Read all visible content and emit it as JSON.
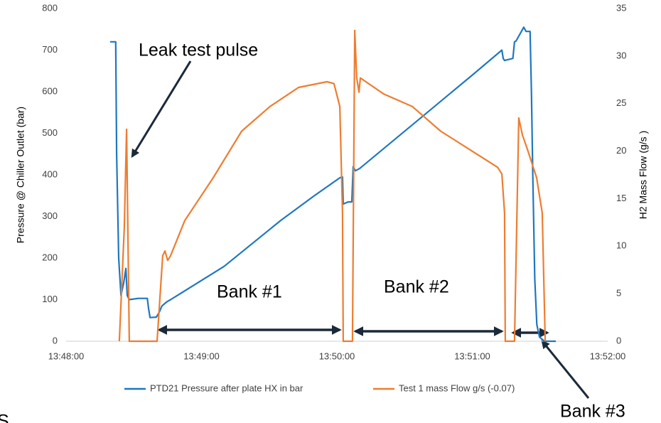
{
  "chart_data": {
    "type": "line",
    "y_label": "Pressure @ Chiller Outlet (bar)",
    "y2_label": "H2  Mass Flow (g/s )",
    "xlim": [
      49680,
      49920
    ],
    "xticks": [
      {
        "value": 49680,
        "label": "13:48:00"
      },
      {
        "value": 49740,
        "label": "13:49:00"
      },
      {
        "value": 49800,
        "label": "13:50:00"
      },
      {
        "value": 49860,
        "label": "13:51:00"
      },
      {
        "value": 49920,
        "label": "13:52:00"
      }
    ],
    "ylim": [
      0,
      800
    ],
    "yticks": [
      0,
      100,
      200,
      300,
      400,
      500,
      600,
      700,
      800
    ],
    "y2lim": [
      0,
      35
    ],
    "y2ticks": [
      0,
      5,
      10,
      15,
      20,
      25,
      30,
      35
    ],
    "grid": false,
    "legend": "bottom",
    "series": [
      {
        "name": "PTD21 Pressure after plate HX in bar",
        "color": "#1f77c0",
        "axis": "y",
        "x": [
          49699.5,
          49702,
          49702.4,
          49703.3,
          49704.3,
          49705.5,
          49706.5,
          49707.1,
          49708,
          49712,
          49716,
          49716.5,
          49717.2,
          49720,
          49721.3,
          49722.5,
          49724.7,
          49726.3,
          49750,
          49775,
          49790,
          49801.3,
          49802.5,
          49802.8,
          49805,
          49806.6,
          49807.2,
          49808.2,
          49810,
          49840,
          49860,
          49873.1,
          49873.7,
          49874.3,
          49878,
          49878.7,
          49879.4,
          49882.8,
          49883.8,
          49885.6,
          49886.2,
          49886.8,
          49887.7,
          49888.6,
          49889.8,
          49892,
          49897
        ],
        "values": [
          720,
          720,
          450,
          200,
          110,
          140,
          175,
          110,
          100,
          103,
          103,
          80,
          57,
          58,
          70,
          85,
          95,
          100,
          180,
          290,
          350,
          393,
          395,
          330,
          335,
          335,
          420,
          410,
          415,
          550,
          640,
          700,
          680,
          675,
          680,
          720,
          722,
          755,
          745,
          745,
          600,
          400,
          150,
          40,
          10,
          0,
          0
        ]
      },
      {
        "name": "Test 1 mass Flow g/s (-0.07)",
        "color": "#ed7d31",
        "axis": "y2",
        "x": [
          49703.6,
          49705.8,
          49706.8,
          49708,
          49720.3,
          49722.8,
          49723.8,
          49725,
          49726.3,
          49732.6,
          49745.2,
          49757.8,
          49770.4,
          49783,
          49795.6,
          49798.7,
          49801.3,
          49802.5,
          49802.8,
          49806.9,
          49807.9,
          49808.8,
          49809.8,
          49810.4,
          49820.8,
          49833.4,
          49846,
          49858.6,
          49871.2,
          49873.1,
          49874.3,
          49874.6,
          49878.7,
          49880.6,
          49882.2,
          49884.4,
          49888.5,
          49891,
          49892.3
        ],
        "values": [
          0,
          12,
          22.3,
          0,
          0,
          9,
          9.5,
          8.5,
          9,
          12.7,
          17.2,
          22.1,
          24.7,
          26.7,
          27.3,
          27.1,
          24.7,
          13.5,
          0,
          0,
          32.7,
          27.7,
          26.2,
          27.7,
          26,
          24.7,
          22.1,
          20.2,
          18.3,
          17.6,
          13.5,
          0,
          0,
          23.5,
          21.7,
          20.2,
          17.2,
          13.5,
          0
        ]
      }
    ],
    "annotations": [
      "Leak test pulse",
      "Bank #1",
      "Bank #2",
      "Bank #3"
    ]
  },
  "cut_text": "S"
}
